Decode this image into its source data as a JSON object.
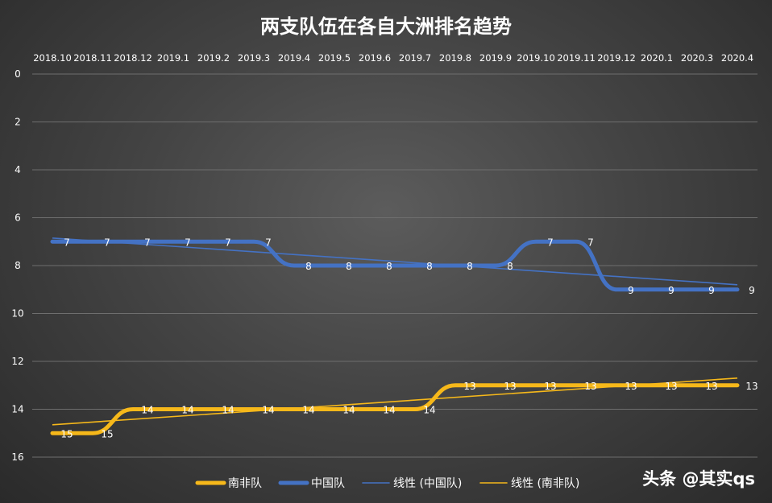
{
  "chart_data": {
    "type": "line",
    "title": "两支队伍在各自大洲排名趋势",
    "categories": [
      "2018.10",
      "2018.11",
      "2018.12",
      "2019.1",
      "2019.2",
      "2019.3",
      "2019.4",
      "2019.5",
      "2019.6",
      "2019.7",
      "2019.8",
      "2019.9",
      "2019.10",
      "2019.11",
      "2019.12",
      "2020.1",
      "2020.3",
      "2020.4"
    ],
    "y_axis": {
      "reversed": true,
      "min": 0,
      "max": 16,
      "ticks": [
        0,
        2,
        4,
        6,
        8,
        10,
        12,
        14,
        16
      ],
      "grid": true
    },
    "x_axis_position": "top",
    "series": [
      {
        "name": "南非队",
        "values": [
          15,
          15,
          14,
          14,
          14,
          14,
          14,
          14,
          14,
          14,
          13,
          13,
          13,
          13,
          13,
          13,
          13,
          13
        ],
        "color": "#f6b81a"
      },
      {
        "name": "中国队",
        "values": [
          7,
          7,
          7,
          7,
          7,
          7,
          8,
          8,
          8,
          8,
          8,
          8,
          7,
          7,
          9,
          9,
          9,
          9
        ],
        "color": "#4472c4"
      }
    ],
    "trendlines": [
      {
        "name": "线性 (中国队)",
        "of_series": "中国队",
        "type": "linear",
        "start": 6.85,
        "end": 8.8,
        "color": "#4472c4"
      },
      {
        "name": "线性 (南非队)",
        "of_series": "南非队",
        "type": "linear",
        "start": 14.65,
        "end": 12.7,
        "color": "#f6b81a"
      }
    ],
    "legend_position": "bottom",
    "legend": [
      "南非队",
      "中国队",
      "线性 (中国队)",
      "线性 (南非队)"
    ]
  },
  "watermark": "头条 @其实qs"
}
